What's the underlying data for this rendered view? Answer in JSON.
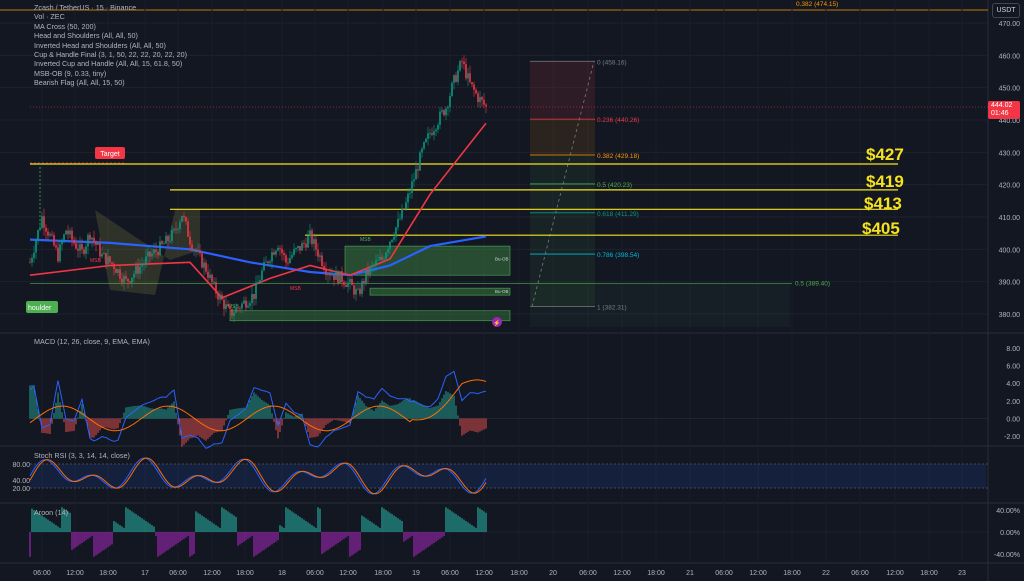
{
  "legend": [
    "Zcash / TetherUS · 15 · Binance",
    "Vol · ZEC",
    "MA Cross (50, 200)",
    "Head and Shoulders (All, All, 50)",
    "Inverted Head and Shoulders (All, All, 50)",
    "Cup & Handle Final (3, 1, 50, 22, 22, 20, 22, 20)",
    "Inverted Cup and Handle (All, All, 15, 61.8, 50)",
    "MSB-OB (9, 0.33, tiny)",
    "Bearish Flag (All, All, 15, 50)"
  ],
  "currency_button": "USDT",
  "current_price": {
    "value": "444.02",
    "countdown": "01:46"
  },
  "price_axis_labels": [
    "470.00",
    "460.00",
    "450.00",
    "440.00",
    "430.00",
    "420.00",
    "410.00",
    "400.00",
    "390.00",
    "380.00"
  ],
  "macd_axis_labels": [
    "8.00",
    "6.00",
    "4.00",
    "2.00",
    "0.00",
    "-2.00"
  ],
  "stoch_axis_labels": [
    "80.00",
    "40.00",
    "20.00"
  ],
  "aroon_axis_labels": [
    "40.00%",
    "0.00%",
    "-40.00%"
  ],
  "time_axis_labels": [
    "06:00",
    "12:00",
    "18:00",
    "17",
    "06:00",
    "12:00",
    "18:00",
    "18",
    "06:00",
    "12:00",
    "18:00",
    "19",
    "06:00",
    "12:00",
    "18:00",
    "20",
    "06:00",
    "12:00",
    "18:00",
    "21",
    "06:00",
    "12:00",
    "18:00",
    "22",
    "06:00",
    "12:00",
    "18:00",
    "23"
  ],
  "indicator_labels": {
    "macd": "MACD (12, 26, close, 9, EMA, EMA)",
    "stoch": "Stoch RSI (3, 3, 14, 14, close)",
    "aroon": "Aroon (14)"
  },
  "levels": [
    {
      "label": "$427",
      "price": 427
    },
    {
      "label": "$419",
      "price": 419
    },
    {
      "label": "$413",
      "price": 413
    },
    {
      "label": "$405",
      "price": 405
    }
  ],
  "fib_levels": [
    {
      "label": "0 (458.16)",
      "price": 458.16,
      "color": "#787b86"
    },
    {
      "label": "0.236 (440.26)",
      "price": 440.26,
      "color": "#f23645"
    },
    {
      "label": "0.382 (429.18)",
      "price": 429.18,
      "color": "#ff9800"
    },
    {
      "label": "0.5 (420.23)",
      "price": 420.23,
      "color": "#4caf50"
    },
    {
      "label": "0.618 (411.29)",
      "price": 411.29,
      "color": "#089981"
    },
    {
      "label": "0.786 (398.54)",
      "price": 398.54,
      "color": "#00bcd4"
    },
    {
      "label": "1 (382.31)",
      "price": 382.31,
      "color": "#787b86"
    }
  ],
  "other_fibs": [
    {
      "label": "0.382 (474.15)",
      "price": 474.15,
      "color": "#ff9800"
    },
    {
      "label": "0.5 (389.40)",
      "price": 389.4,
      "color": "#4caf50"
    }
  ],
  "annotations": {
    "target": "Target",
    "shoulder": "houlder",
    "msb": "MSB",
    "mbs": "MSB",
    "bu_ob": "Bu-OB"
  },
  "chart_data": {
    "type": "line",
    "title": "Zcash / TetherUS · 15 · Binance",
    "y_range": [
      376,
      474
    ],
    "price_path": [
      [
        0,
        396
      ],
      [
        3,
        410
      ],
      [
        5,
        404
      ],
      [
        7,
        398
      ],
      [
        9,
        406
      ],
      [
        11,
        402
      ],
      [
        13,
        399
      ],
      [
        15,
        405
      ],
      [
        18,
        398
      ],
      [
        21,
        395
      ],
      [
        24,
        390
      ],
      [
        27,
        394
      ],
      [
        30,
        398
      ],
      [
        33,
        401
      ],
      [
        36,
        405
      ],
      [
        38,
        411
      ],
      [
        40,
        403
      ],
      [
        42,
        398
      ],
      [
        44,
        394
      ],
      [
        46,
        388
      ],
      [
        48,
        384
      ],
      [
        50,
        380
      ],
      [
        52,
        382
      ],
      [
        54,
        384
      ],
      [
        56,
        386
      ],
      [
        58,
        393
      ],
      [
        60,
        398
      ],
      [
        62,
        402
      ],
      [
        64,
        396
      ],
      [
        66,
        399
      ],
      [
        68,
        401
      ],
      [
        70,
        404
      ],
      [
        72,
        399
      ],
      [
        74,
        394
      ],
      [
        76,
        392
      ],
      [
        78,
        391
      ],
      [
        80,
        389
      ],
      [
        82,
        386
      ],
      [
        84,
        392
      ],
      [
        86,
        395
      ],
      [
        88,
        397
      ],
      [
        90,
        403
      ],
      [
        92,
        408
      ],
      [
        94,
        414
      ],
      [
        96,
        422
      ],
      [
        98,
        430
      ],
      [
        100,
        436
      ],
      [
        102,
        440
      ],
      [
        104,
        444
      ],
      [
        106,
        452
      ],
      [
        108,
        458
      ],
      [
        110,
        451
      ],
      [
        112,
        447
      ],
      [
        114,
        444
      ]
    ],
    "ma_red": [
      [
        0,
        392
      ],
      [
        20,
        395
      ],
      [
        40,
        396
      ],
      [
        48,
        385
      ],
      [
        60,
        391
      ],
      [
        70,
        395
      ],
      [
        80,
        392
      ],
      [
        90,
        397
      ],
      [
        100,
        417
      ],
      [
        114,
        439
      ]
    ],
    "ma_blue": [
      [
        0,
        403
      ],
      [
        20,
        402
      ],
      [
        40,
        400
      ],
      [
        55,
        396
      ],
      [
        70,
        393
      ],
      [
        80,
        392
      ],
      [
        90,
        395
      ],
      [
        100,
        401
      ],
      [
        114,
        404
      ]
    ]
  }
}
